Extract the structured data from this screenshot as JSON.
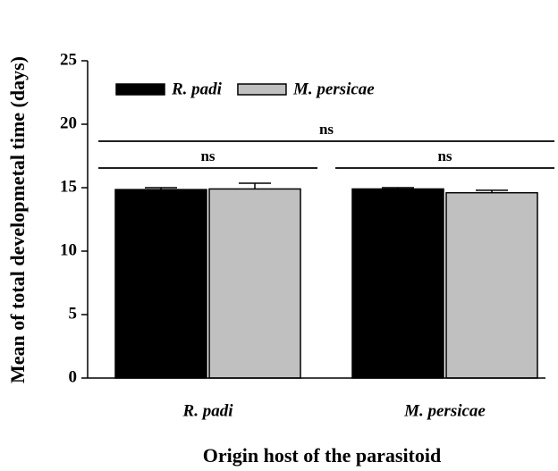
{
  "chart_data": {
    "type": "bar",
    "xlabel": "Origin host of the parasitoid",
    "ylabel": "Mean of total developmetal time (days)",
    "categories": [
      "R. padi",
      "M. persicae"
    ],
    "series": [
      {
        "name": "R. padi",
        "color": "#000000",
        "values": [
          14.85,
          14.9
        ],
        "errors": [
          0.15,
          0.1
        ]
      },
      {
        "name": "M. persicae",
        "color": "#c0c0c0",
        "values": [
          14.9,
          14.6
        ],
        "errors": [
          0.45,
          0.2
        ]
      }
    ],
    "annotations": [
      "ns",
      "ns",
      "ns"
    ],
    "ylim": [
      0,
      25
    ],
    "yticks": [
      0,
      5,
      10,
      15,
      20,
      25
    ],
    "legend": "upper left"
  }
}
